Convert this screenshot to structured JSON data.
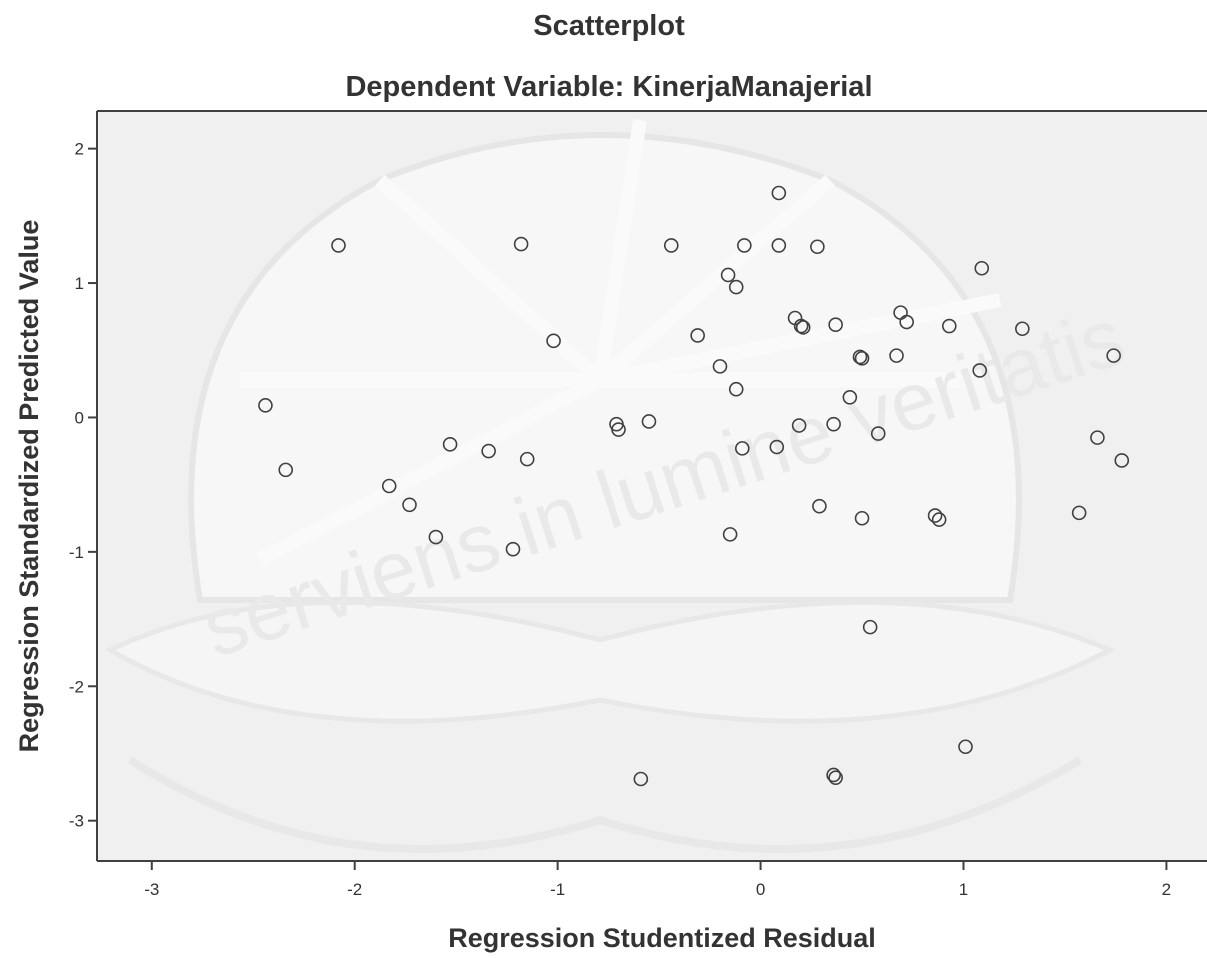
{
  "chart_data": {
    "type": "scatter",
    "title": "Scatterplot",
    "subtitle": "Dependent Variable: KinerjaManajerial",
    "xlabel": "Regression Studentized Residual",
    "ylabel": "Regression Standardized Predicted Value",
    "xlim": [
      -3.27,
      2.2
    ],
    "ylim": [
      -3.3,
      2.28
    ],
    "x_ticks": [
      -3,
      -2,
      -1,
      0,
      1,
      2
    ],
    "y_ticks": [
      2,
      1,
      0,
      -1,
      -2,
      -3
    ],
    "x_tick_labels": [
      "-3",
      "-2",
      "-1",
      "0",
      "1",
      "2"
    ],
    "y_tick_labels": [
      "2",
      "1",
      "0",
      "-1",
      "-2",
      "-3"
    ],
    "grid": false,
    "marker": "open-circle",
    "colors": {
      "marker_stroke": "#404040",
      "plot_background": "#f0f0f0",
      "axis": "#404040",
      "text": "#333333"
    },
    "watermark_text": "serviens in lumine veritatis",
    "points": [
      {
        "x": -2.08,
        "y": 1.28
      },
      {
        "x": -1.18,
        "y": 1.29
      },
      {
        "x": -0.44,
        "y": 1.28
      },
      {
        "x": 0.09,
        "y": 1.67
      },
      {
        "x": -0.08,
        "y": 1.28
      },
      {
        "x": 0.09,
        "y": 1.28
      },
      {
        "x": 0.28,
        "y": 1.27
      },
      {
        "x": -0.16,
        "y": 1.06
      },
      {
        "x": -0.12,
        "y": 0.97
      },
      {
        "x": 1.09,
        "y": 1.11
      },
      {
        "x": -1.02,
        "y": 0.57
      },
      {
        "x": -0.31,
        "y": 0.61
      },
      {
        "x": 0.17,
        "y": 0.74
      },
      {
        "x": 0.2,
        "y": 0.68
      },
      {
        "x": 0.21,
        "y": 0.67
      },
      {
        "x": 0.37,
        "y": 0.69
      },
      {
        "x": 0.69,
        "y": 0.78
      },
      {
        "x": 0.72,
        "y": 0.71
      },
      {
        "x": 0.93,
        "y": 0.68
      },
      {
        "x": 1.29,
        "y": 0.66
      },
      {
        "x": 0.49,
        "y": 0.45
      },
      {
        "x": 0.5,
        "y": 0.44
      },
      {
        "x": 0.67,
        "y": 0.46
      },
      {
        "x": 1.08,
        "y": 0.35
      },
      {
        "x": 1.74,
        "y": 0.46
      },
      {
        "x": -0.2,
        "y": 0.38
      },
      {
        "x": -0.12,
        "y": 0.21
      },
      {
        "x": 0.44,
        "y": 0.15
      },
      {
        "x": -2.44,
        "y": 0.09
      },
      {
        "x": -0.71,
        "y": -0.05
      },
      {
        "x": -0.7,
        "y": -0.09
      },
      {
        "x": -0.55,
        "y": -0.03
      },
      {
        "x": 0.19,
        "y": -0.06
      },
      {
        "x": 0.36,
        "y": -0.05
      },
      {
        "x": 0.58,
        "y": -0.12
      },
      {
        "x": -1.53,
        "y": -0.2
      },
      {
        "x": -1.34,
        "y": -0.25
      },
      {
        "x": -1.15,
        "y": -0.31
      },
      {
        "x": -0.09,
        "y": -0.23
      },
      {
        "x": 0.08,
        "y": -0.22
      },
      {
        "x": 1.66,
        "y": -0.15
      },
      {
        "x": 1.78,
        "y": -0.32
      },
      {
        "x": -2.34,
        "y": -0.39
      },
      {
        "x": -1.83,
        "y": -0.51
      },
      {
        "x": -1.73,
        "y": -0.65
      },
      {
        "x": -1.6,
        "y": -0.89
      },
      {
        "x": -1.22,
        "y": -0.98
      },
      {
        "x": -0.15,
        "y": -0.87
      },
      {
        "x": 0.29,
        "y": -0.66
      },
      {
        "x": 0.5,
        "y": -0.75
      },
      {
        "x": 0.86,
        "y": -0.73
      },
      {
        "x": 0.88,
        "y": -0.76
      },
      {
        "x": 1.57,
        "y": -0.71
      },
      {
        "x": 0.54,
        "y": -1.56
      },
      {
        "x": -0.59,
        "y": -2.69
      },
      {
        "x": 0.36,
        "y": -2.66
      },
      {
        "x": 0.37,
        "y": -2.68
      },
      {
        "x": 1.01,
        "y": -2.45
      }
    ]
  }
}
